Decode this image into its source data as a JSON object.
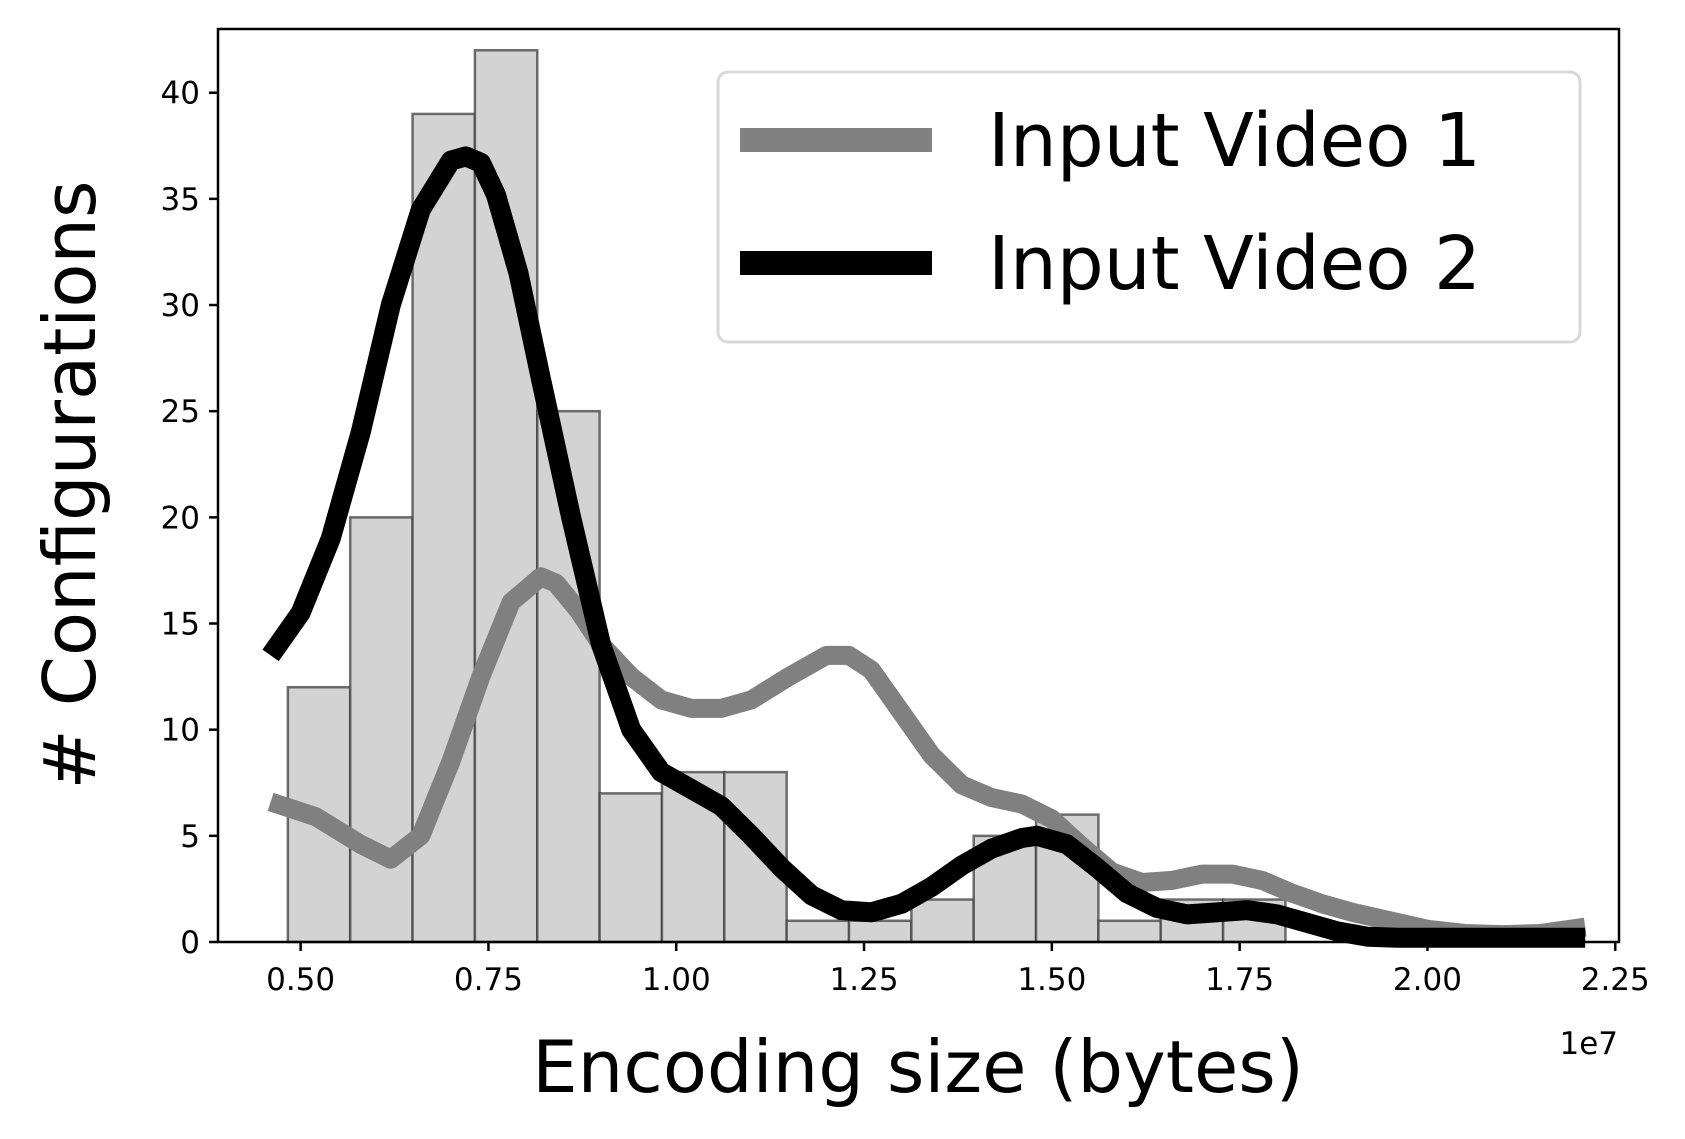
{
  "chart_data": {
    "type": "bar",
    "xlabel": "Encoding size (bytes)",
    "ylabel": "# Configurations",
    "x_offset_label": "1e7",
    "xlim": [
      0.39,
      2.255
    ],
    "ylim": [
      0,
      43
    ],
    "x_ticks": [
      0.5,
      0.75,
      1.0,
      1.25,
      1.5,
      1.75,
      2.0,
      2.25
    ],
    "x_tick_labels": [
      "0.50",
      "0.75",
      "1.00",
      "1.25",
      "1.50",
      "1.75",
      "2.00",
      "2.25"
    ],
    "y_ticks": [
      0,
      5,
      10,
      15,
      20,
      25,
      30,
      35,
      40
    ],
    "y_tick_labels": [
      "0",
      "5",
      "10",
      "15",
      "20",
      "25",
      "30",
      "35",
      "40"
    ],
    "grid": false,
    "legend_placement": "top-right",
    "histogram": {
      "bin_edges": [
        0.483,
        0.566,
        0.649,
        0.732,
        0.815,
        0.898,
        0.981,
        1.064,
        1.147,
        1.23,
        1.313,
        1.396,
        1.479,
        1.562,
        1.645,
        1.728,
        1.811
      ],
      "counts": [
        12,
        20,
        39,
        42,
        25,
        7,
        8,
        8,
        1,
        1,
        2,
        5,
        6,
        1,
        2,
        2
      ],
      "color": "#d3d3d3",
      "edge_color": "#404040"
    },
    "series": [
      {
        "name": "Input Video 1",
        "color": "#808080",
        "x": [
          0.46,
          0.52,
          0.58,
          0.62,
          0.66,
          0.7,
          0.74,
          0.78,
          0.82,
          0.84,
          0.87,
          0.9,
          0.94,
          0.98,
          1.02,
          1.06,
          1.1,
          1.15,
          1.2,
          1.23,
          1.26,
          1.3,
          1.34,
          1.38,
          1.42,
          1.46,
          1.5,
          1.54,
          1.58,
          1.62,
          1.66,
          1.7,
          1.74,
          1.78,
          1.82,
          1.86,
          1.9,
          1.95,
          2.0,
          2.05,
          2.1,
          2.15,
          2.21
        ],
        "y": [
          6.6,
          5.9,
          4.6,
          3.9,
          5.0,
          8.5,
          12.5,
          16.0,
          17.2,
          16.9,
          15.6,
          14.0,
          12.5,
          11.4,
          11.0,
          11.0,
          11.4,
          12.5,
          13.5,
          13.5,
          12.8,
          10.8,
          8.8,
          7.4,
          6.8,
          6.5,
          5.8,
          4.5,
          3.3,
          2.8,
          2.9,
          3.2,
          3.2,
          2.9,
          2.3,
          1.8,
          1.4,
          1.0,
          0.6,
          0.4,
          0.35,
          0.4,
          0.7
        ]
      },
      {
        "name": "Input Video 2",
        "color": "#000000",
        "x": [
          0.46,
          0.5,
          0.54,
          0.58,
          0.62,
          0.66,
          0.7,
          0.72,
          0.74,
          0.76,
          0.79,
          0.82,
          0.86,
          0.9,
          0.94,
          0.98,
          1.02,
          1.06,
          1.1,
          1.14,
          1.18,
          1.22,
          1.26,
          1.3,
          1.34,
          1.38,
          1.42,
          1.46,
          1.48,
          1.52,
          1.56,
          1.6,
          1.64,
          1.68,
          1.72,
          1.76,
          1.8,
          1.84,
          1.88,
          1.92,
          1.96,
          2.0,
          2.1,
          2.21
        ],
        "y": [
          13.5,
          15.5,
          19.0,
          24.0,
          30.0,
          34.5,
          36.8,
          37.0,
          36.7,
          35.2,
          31.5,
          26.5,
          20.0,
          14.0,
          10.0,
          8.0,
          7.2,
          6.4,
          5.0,
          3.5,
          2.2,
          1.5,
          1.4,
          1.8,
          2.6,
          3.6,
          4.4,
          4.9,
          5.0,
          4.6,
          3.5,
          2.3,
          1.6,
          1.3,
          1.4,
          1.5,
          1.3,
          0.9,
          0.5,
          0.25,
          0.2,
          0.2,
          0.2,
          0.2
        ]
      }
    ]
  }
}
